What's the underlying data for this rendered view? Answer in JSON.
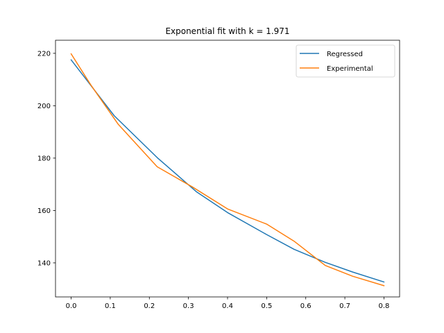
{
  "chart_data": {
    "type": "line",
    "title": "Exponential fit with k = 1.971",
    "xlabel": "",
    "ylabel": "",
    "xlim": [
      -0.04,
      0.84
    ],
    "ylim": [
      127,
      225
    ],
    "xticks": [
      0.0,
      0.1,
      0.2,
      0.3,
      0.4,
      0.5,
      0.6,
      0.7,
      0.8
    ],
    "xtick_labels": [
      "0.0",
      "0.1",
      "0.2",
      "0.3",
      "0.4",
      "0.5",
      "0.6",
      "0.7",
      "0.8"
    ],
    "yticks": [
      140,
      160,
      180,
      200,
      220
    ],
    "ytick_labels": [
      "140",
      "160",
      "180",
      "200",
      "220"
    ],
    "grid": false,
    "legend_position": "top-right",
    "series": [
      {
        "name": "Regressed",
        "color": "#1f77b4",
        "x": [
          0.0,
          0.11,
          0.22,
          0.32,
          0.4,
          0.5,
          0.57,
          0.65,
          0.72,
          0.8
        ],
        "y": [
          217.5,
          196.2,
          180.2,
          167.2,
          159.2,
          150.8,
          145.2,
          140.2,
          136.5,
          132.7
        ]
      },
      {
        "name": "Experimental",
        "color": "#ff7f0e",
        "x": [
          0.0,
          0.05,
          0.12,
          0.22,
          0.31,
          0.4,
          0.5,
          0.57,
          0.65,
          0.72,
          0.8
        ],
        "y": [
          219.8,
          208.0,
          193.0,
          176.7,
          169.0,
          160.6,
          154.8,
          148.3,
          139.0,
          134.9,
          131.3
        ]
      }
    ]
  }
}
